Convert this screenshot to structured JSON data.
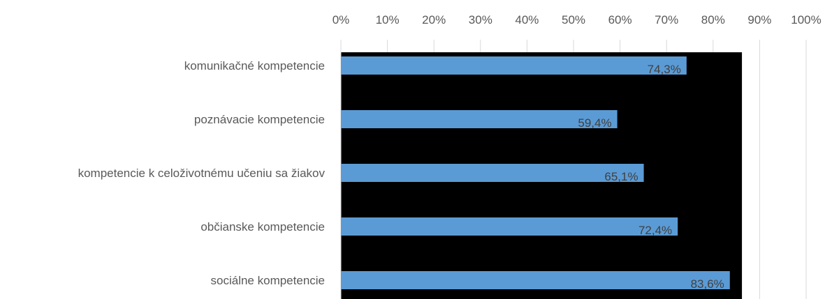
{
  "chart_data": {
    "type": "bar",
    "orientation": "horizontal",
    "categories": [
      "komunikačné kompetencie",
      "poznávacie kompetencie",
      "kompetencie k celoživotnému učeniu sa žiakov",
      "občianske kompetencie",
      "sociálne kompetencie"
    ],
    "values": [
      74.3,
      59.4,
      65.1,
      72.4,
      83.6
    ],
    "data_labels": [
      "74,3%",
      "59,4%",
      "65,1%",
      "72,4%",
      "83,6%"
    ],
    "x_ticks": [
      "0%",
      "10%",
      "20%",
      "30%",
      "40%",
      "50%",
      "60%",
      "70%",
      "80%",
      "90%",
      "100%"
    ],
    "xlim": [
      0,
      100
    ],
    "x_axis_position": "top",
    "grid": true,
    "colors": {
      "bar": "#5b9bd5",
      "plot_fill": "#000000",
      "gridline": "#d9d9d9",
      "text": "#595959"
    }
  }
}
